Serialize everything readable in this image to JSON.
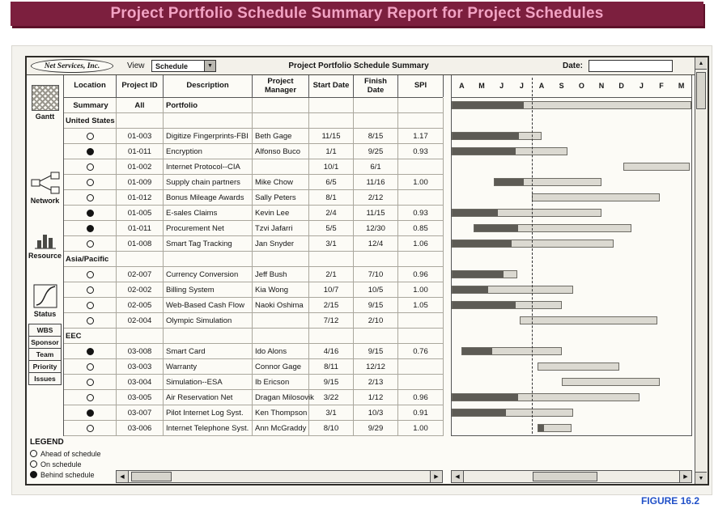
{
  "banner": {
    "title": "Project Portfolio Schedule Summary Report for Project Schedules",
    "bg_color": "#7c1f3e",
    "text_color": "#f2a3c4"
  },
  "figure_caption": "FIGURE 16.2",
  "toolbar": {
    "logo": "Net Services, Inc.",
    "view_label": "View",
    "view_value": "Schedule",
    "title": "Project Portfolio Schedule Summary",
    "date_label": "Date:",
    "date_value": ""
  },
  "icons": {
    "dropdown": "▼",
    "scroll_up": "▲",
    "scroll_down": "▼",
    "scroll_left": "◀",
    "scroll_right": "▶"
  },
  "sidebar": {
    "tools": [
      {
        "label": "Gantt",
        "icon": "gantt-icon"
      },
      {
        "label": "Network",
        "icon": "network-icon"
      },
      {
        "label": "Resource",
        "icon": "resource-icon"
      },
      {
        "label": "Status",
        "icon": "status-icon"
      }
    ],
    "buttons": [
      "WBS",
      "Sponsor",
      "Team",
      "Priority",
      "Issues"
    ]
  },
  "legend": {
    "title": "LEGEND",
    "items": [
      {
        "label": "Ahead of schedule",
        "marker": "open-circle"
      },
      {
        "label": "On schedule",
        "marker": "open-circle"
      },
      {
        "label": "Behind schedule",
        "marker": "filled-circle"
      }
    ]
  },
  "timeline": {
    "months": [
      "A",
      "M",
      "J",
      "J",
      "A",
      "S",
      "O",
      "N",
      "D",
      "J",
      "F",
      "M"
    ],
    "status_line_after_month_index": 4
  },
  "table": {
    "headers": [
      "Location",
      "Project ID",
      "Description",
      "Project Manager",
      "Start Date",
      "Finish Date",
      "SPI"
    ],
    "rows": [
      {
        "type": "summary",
        "location": "Summary",
        "id": "All",
        "description": "Portfolio",
        "manager": "",
        "start": "",
        "finish": "",
        "spi": "",
        "bar": {
          "start": 0,
          "end": 12,
          "progress": 3.6
        }
      },
      {
        "type": "section",
        "location": "United States"
      },
      {
        "type": "project",
        "status": "open",
        "id": "01-003",
        "description": "Digitize Fingerprints-FBI",
        "manager": "Beth Gage",
        "start": "11/15",
        "finish": "8/15",
        "spi": "1.17",
        "bar": {
          "start": 0,
          "end": 4.5,
          "progress": 3.4
        }
      },
      {
        "type": "project",
        "status": "filled",
        "id": "01-011",
        "description": "Encryption",
        "manager": "Alfonso Buco",
        "start": "1/1",
        "finish": "9/25",
        "spi": "0.93",
        "bar": {
          "start": 0,
          "end": 5.8,
          "progress": 3.2
        }
      },
      {
        "type": "project",
        "status": "open",
        "id": "01-002",
        "description": "Internet Protocol--CIA",
        "manager": "",
        "start": "10/1",
        "finish": "6/1",
        "spi": "",
        "bar": {
          "start": 8.6,
          "end": 11.9
        }
      },
      {
        "type": "project",
        "status": "open",
        "id": "01-009",
        "description": "Supply chain partners",
        "manager": "Mike Chow",
        "start": "6/5",
        "finish": "11/16",
        "spi": "1.00",
        "bar": {
          "start": 2.1,
          "end": 7.5,
          "progress": 3.6
        }
      },
      {
        "type": "project",
        "status": "open",
        "id": "01-012",
        "description": "Bonus Mileage Awards",
        "manager": "Sally Peters",
        "start": "8/1",
        "finish": "2/12",
        "spi": "",
        "bar": {
          "start": 4.0,
          "end": 10.4
        }
      },
      {
        "type": "project",
        "status": "filled",
        "id": "01-005",
        "description": "E-sales Claims",
        "manager": "Kevin Lee",
        "start": "2/4",
        "finish": "11/15",
        "spi": "0.93",
        "bar": {
          "start": 0,
          "end": 7.5,
          "progress": 2.3
        }
      },
      {
        "type": "project",
        "status": "filled",
        "id": "01-011",
        "description": "Procurement Net",
        "manager": "Tzvi Jafarri",
        "start": "5/5",
        "finish": "12/30",
        "spi": "0.85",
        "bar": {
          "start": 1.1,
          "end": 9.0,
          "progress": 3.3
        }
      },
      {
        "type": "project",
        "status": "open",
        "id": "01-008",
        "description": "Smart Tag Tracking",
        "manager": "Jan Snyder",
        "start": "3/1",
        "finish": "12/4",
        "spi": "1.06",
        "bar": {
          "start": 0,
          "end": 8.1,
          "progress": 3.0
        }
      },
      {
        "type": "section",
        "location": "Asia/Pacific"
      },
      {
        "type": "project",
        "status": "open",
        "id": "02-007",
        "description": "Currency Conversion",
        "manager": "Jeff Bush",
        "start": "2/1",
        "finish": "7/10",
        "spi": "0.96",
        "bar": {
          "start": 0,
          "end": 3.3,
          "progress": 2.6
        }
      },
      {
        "type": "project",
        "status": "open",
        "id": "02-002",
        "description": "Billing System",
        "manager": "Kia Wong",
        "start": "10/7",
        "finish": "10/5",
        "spi": "1.00",
        "bar": {
          "start": 0,
          "end": 6.1,
          "progress": 1.8
        }
      },
      {
        "type": "project",
        "status": "open",
        "id": "02-005",
        "description": "Web-Based Cash Flow",
        "manager": "Naoki Oshima",
        "start": "2/15",
        "finish": "9/15",
        "spi": "1.05",
        "bar": {
          "start": 0,
          "end": 5.5,
          "progress": 3.2
        }
      },
      {
        "type": "project",
        "status": "open",
        "id": "02-004",
        "description": "Olympic Simulation",
        "manager": "",
        "start": "7/12",
        "finish": "2/10",
        "spi": "",
        "bar": {
          "start": 3.4,
          "end": 10.3
        }
      },
      {
        "type": "section",
        "location": "EEC"
      },
      {
        "type": "project",
        "status": "filled",
        "id": "03-008",
        "description": "Smart Card",
        "manager": "Ido Alons",
        "start": "4/16",
        "finish": "9/15",
        "spi": "0.76",
        "bar": {
          "start": 0.5,
          "end": 5.5,
          "progress": 2.0
        }
      },
      {
        "type": "project",
        "status": "open",
        "id": "03-003",
        "description": "Warranty",
        "manager": "Connor Gage",
        "start": "8/11",
        "finish": "12/12",
        "spi": "",
        "bar": {
          "start": 4.3,
          "end": 8.4
        }
      },
      {
        "type": "project",
        "status": "open",
        "id": "03-004",
        "description": "Simulation--ESA",
        "manager": "Ib Ericson",
        "start": "9/15",
        "finish": "2/13",
        "spi": "",
        "bar": {
          "start": 5.5,
          "end": 10.4
        }
      },
      {
        "type": "project",
        "status": "open",
        "id": "03-005",
        "description": "Air Reservation Net",
        "manager": "Dragan Milosovik",
        "start": "3/22",
        "finish": "1/12",
        "spi": "0.96",
        "bar": {
          "start": 0,
          "end": 9.4,
          "progress": 3.3
        }
      },
      {
        "type": "project",
        "status": "filled",
        "id": "03-007",
        "description": "Pilot Internet Log Syst.",
        "manager": "Ken Thompson",
        "start": "3/1",
        "finish": "10/3",
        "spi": "0.91",
        "bar": {
          "start": 0,
          "end": 6.1,
          "progress": 2.7
        }
      },
      {
        "type": "project",
        "status": "open",
        "id": "03-006",
        "description": "Internet Telephone Syst.",
        "manager": "Ann McGraddy",
        "start": "8/10",
        "finish": "9/29",
        "spi": "1.00",
        "bar": {
          "start": 4.3,
          "end": 6.0,
          "progress": 4.6
        }
      }
    ]
  }
}
